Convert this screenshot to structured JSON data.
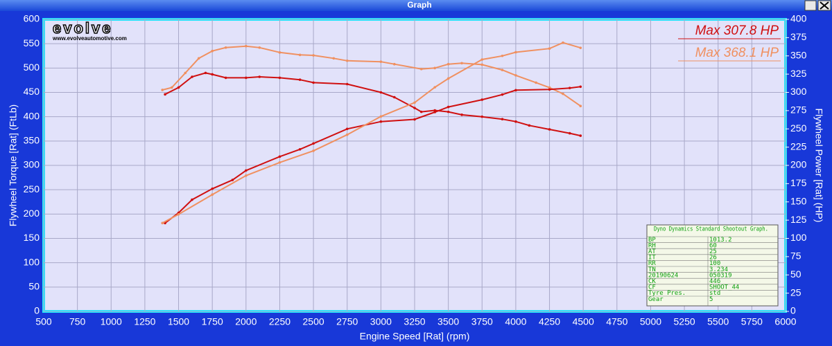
{
  "window": {
    "title": "Graph"
  },
  "logo": {
    "text": "evolve",
    "url": "www.evolveautomotive.com"
  },
  "info_box": {
    "title": "Dyno Dynamics Standard Shootout Graph.",
    "rows": [
      [
        "BP",
        "1013.2"
      ],
      [
        "RH",
        "60"
      ],
      [
        "AT",
        "25"
      ],
      [
        "IT",
        "26"
      ],
      [
        "RR",
        "100"
      ],
      [
        "TN",
        "3.234"
      ],
      [
        "20190624",
        "050319"
      ],
      [
        "CK",
        "446"
      ],
      [
        "CF",
        "SHOOT_44"
      ],
      [
        "Tyre Pres.",
        "std"
      ],
      [
        "Gear",
        "5"
      ]
    ]
  },
  "chart_data": {
    "type": "line",
    "x_label": "Engine Speed [Rat] (rpm)",
    "y_label": "Flywheel Torque [Rat] (FtLb)",
    "y2_label": "Flywheel Power [Rat] (HP)",
    "xlim": [
      500,
      6000
    ],
    "xticks": [
      500,
      750,
      1000,
      1250,
      1500,
      1750,
      2000,
      2250,
      2500,
      2750,
      3000,
      3250,
      3500,
      3750,
      4000,
      4250,
      4500,
      4750,
      5000,
      5250,
      5500,
      5750,
      6000
    ],
    "ylim": [
      0,
      600
    ],
    "yticks": [
      0,
      50,
      100,
      150,
      200,
      250,
      300,
      350,
      400,
      450,
      500,
      550,
      600
    ],
    "y2lim": [
      0,
      400
    ],
    "y2ticks": [
      0,
      25,
      50,
      75,
      100,
      125,
      150,
      175,
      200,
      225,
      250,
      275,
      300,
      325,
      350,
      375,
      400
    ],
    "grid": true,
    "series": [
      {
        "color": "#d01010",
        "axis": "y",
        "x": [
          1400,
          1500,
          1600,
          1700,
          1750,
          1850,
          2000,
          2100,
          2250,
          2400,
          2500,
          2750,
          3000,
          3100,
          3250,
          3300,
          3400,
          3500,
          3600,
          3750,
          3900,
          4000,
          4100,
          4250,
          4400,
          4480
        ],
        "values": [
          446,
          460,
          482,
          490,
          487,
          480,
          480,
          482,
          480,
          476,
          470,
          467,
          450,
          440,
          418,
          410,
          413,
          410,
          404,
          400,
          395,
          390,
          382,
          374,
          366,
          361
        ]
      },
      {
        "color": "#f09060",
        "axis": "y",
        "x": [
          1380,
          1450,
          1550,
          1650,
          1750,
          1850,
          2000,
          2100,
          2250,
          2400,
          2500,
          2650,
          2750,
          3000,
          3100,
          3300,
          3400,
          3500,
          3600,
          3750,
          3900,
          4000,
          4150,
          4250,
          4350,
          4480
        ],
        "values": [
          455,
          460,
          490,
          520,
          535,
          542,
          545,
          542,
          532,
          527,
          526,
          520,
          515,
          513,
          508,
          498,
          500,
          508,
          510,
          507,
          496,
          485,
          470,
          460,
          447,
          422
        ]
      },
      {
        "name": "Max 307.8 HP",
        "color": "#d01010",
        "axis": "y2",
        "x": [
          1400,
          1500,
          1600,
          1750,
          1900,
          2000,
          2250,
          2400,
          2500,
          2750,
          3000,
          3250,
          3400,
          3500,
          3750,
          3900,
          4000,
          4250,
          4400,
          4480
        ],
        "values": [
          121,
          135,
          153,
          168,
          180,
          193,
          212,
          222,
          230,
          250,
          260,
          263,
          273,
          280,
          290,
          297,
          303,
          304,
          306,
          307.8
        ]
      },
      {
        "name": "Max 368.1 HP",
        "color": "#f09060",
        "axis": "y2",
        "x": [
          1380,
          1500,
          1750,
          2000,
          2250,
          2500,
          2750,
          3000,
          3250,
          3400,
          3500,
          3750,
          3900,
          4000,
          4250,
          4350,
          4480
        ],
        "values": [
          121,
          133,
          160,
          186,
          204,
          220,
          242,
          267,
          286,
          307,
          319,
          345,
          350,
          355,
          360,
          368.1,
          361
        ]
      }
    ]
  }
}
